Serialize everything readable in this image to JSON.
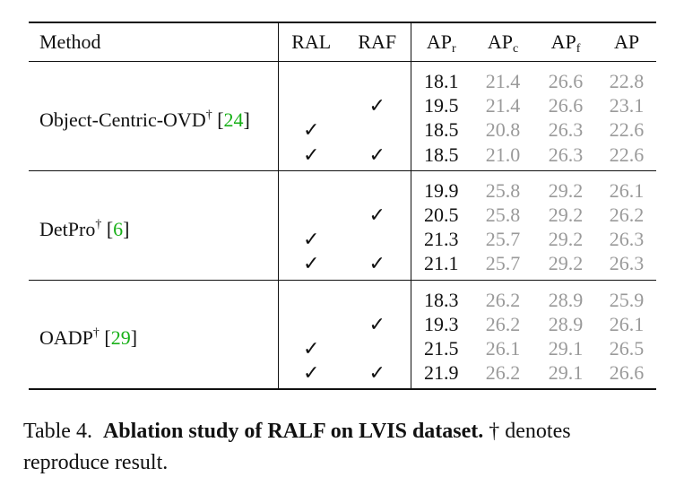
{
  "headers": {
    "method": "Method",
    "ral": "RAL",
    "raf": "RAF",
    "ap": "AP",
    "apr_sub": "r",
    "apc_sub": "c",
    "apf_sub": "f"
  },
  "check_mark": "✓",
  "dagger": "†",
  "groups": [
    {
      "name": "Object-Centric-OVD",
      "cite": "24",
      "rows": [
        {
          "ral": "",
          "raf": "",
          "apr": "18.1",
          "apc": "21.4",
          "apf": "26.6",
          "ap": "22.8"
        },
        {
          "ral": "",
          "raf": "✓",
          "apr": "19.5",
          "apc": "21.4",
          "apf": "26.6",
          "ap": "23.1"
        },
        {
          "ral": "✓",
          "raf": "",
          "apr": "18.5",
          "apc": "20.8",
          "apf": "26.3",
          "ap": "22.6"
        },
        {
          "ral": "✓",
          "raf": "✓",
          "apr": "18.5",
          "apc": "21.0",
          "apf": "26.3",
          "ap": "22.6"
        }
      ]
    },
    {
      "name": "DetPro",
      "cite": "6",
      "rows": [
        {
          "ral": "",
          "raf": "",
          "apr": "19.9",
          "apc": "25.8",
          "apf": "29.2",
          "ap": "26.1"
        },
        {
          "ral": "",
          "raf": "✓",
          "apr": "20.5",
          "apc": "25.8",
          "apf": "29.2",
          "ap": "26.2"
        },
        {
          "ral": "✓",
          "raf": "",
          "apr": "21.3",
          "apc": "25.7",
          "apf": "29.2",
          "ap": "26.3"
        },
        {
          "ral": "✓",
          "raf": "✓",
          "apr": "21.1",
          "apc": "25.7",
          "apf": "29.2",
          "ap": "26.3"
        }
      ]
    },
    {
      "name": "OADP",
      "cite": "29",
      "rows": [
        {
          "ral": "",
          "raf": "",
          "apr": "18.3",
          "apc": "26.2",
          "apf": "28.9",
          "ap": "25.9"
        },
        {
          "ral": "",
          "raf": "✓",
          "apr": "19.3",
          "apc": "26.2",
          "apf": "28.9",
          "ap": "26.1"
        },
        {
          "ral": "✓",
          "raf": "",
          "apr": "21.5",
          "apc": "26.1",
          "apf": "29.1",
          "ap": "26.5"
        },
        {
          "ral": "✓",
          "raf": "✓",
          "apr": "21.9",
          "apc": "26.2",
          "apf": "29.1",
          "ap": "26.6"
        }
      ]
    }
  ],
  "caption": {
    "label": "Table 4.",
    "title": "Ablation study of RALF on LVIS dataset.",
    "body": "† denotes reproduce result."
  },
  "colors": {
    "citation": "#18b018",
    "secondary_value": "#9a9a9a",
    "text": "#111111"
  }
}
